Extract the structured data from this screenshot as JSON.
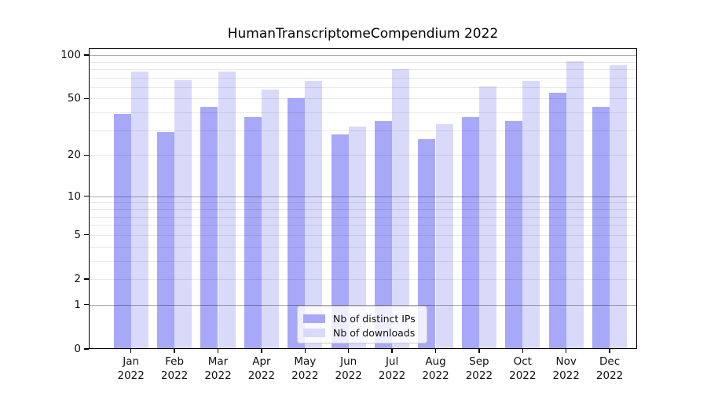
{
  "figure": {
    "title": "HumanTranscriptomeCompendium 2022"
  },
  "chart_data": {
    "type": "bar",
    "title": "HumanTranscriptomeCompendium 2022",
    "xlabel": "",
    "ylabel": "",
    "x_tick_months": [
      "Jan",
      "Feb",
      "Mar",
      "Apr",
      "May",
      "Jun",
      "Jul",
      "Aug",
      "Sep",
      "Oct",
      "Nov",
      "Dec"
    ],
    "x_tick_year": "2022",
    "series": [
      {
        "name": "Nb of distinct IPs",
        "color": "#a8a8f8",
        "values": [
          39,
          29,
          44,
          37,
          50,
          28,
          35,
          26,
          37,
          35,
          55,
          44
        ]
      },
      {
        "name": "Nb of downloads",
        "color": "#d9d9fa",
        "values": [
          77,
          67,
          77,
          58,
          66,
          32,
          80,
          33,
          61,
          66,
          91,
          85
        ]
      }
    ],
    "yscale": "log1p",
    "ylim": [
      0,
      112
    ],
    "yticks": [
      0,
      1,
      2,
      5,
      10,
      20,
      50,
      100
    ],
    "grid_major_lines": [
      1,
      10,
      100
    ],
    "grid_minor_lines": [
      2,
      3,
      4,
      5,
      6,
      7,
      8,
      9,
      20,
      30,
      40,
      50,
      60,
      70,
      80,
      90
    ],
    "grid": "horizontal",
    "legend_position": "lower center"
  }
}
